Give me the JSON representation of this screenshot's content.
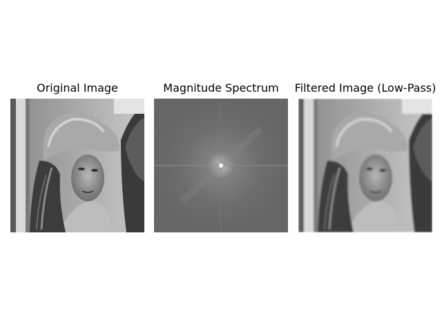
{
  "panels": [
    {
      "title": "Original Image",
      "image": "grayscale portrait photo"
    },
    {
      "title": "Magnitude Spectrum",
      "image": "frequency magnitude spectrum"
    },
    {
      "title": "Filtered Image (Low-Pass)",
      "image": "blurred grayscale portrait photo"
    }
  ],
  "colors": {
    "background": "#ffffff",
    "text": "#000000",
    "spectrum_base": "#5e5e5e"
  }
}
